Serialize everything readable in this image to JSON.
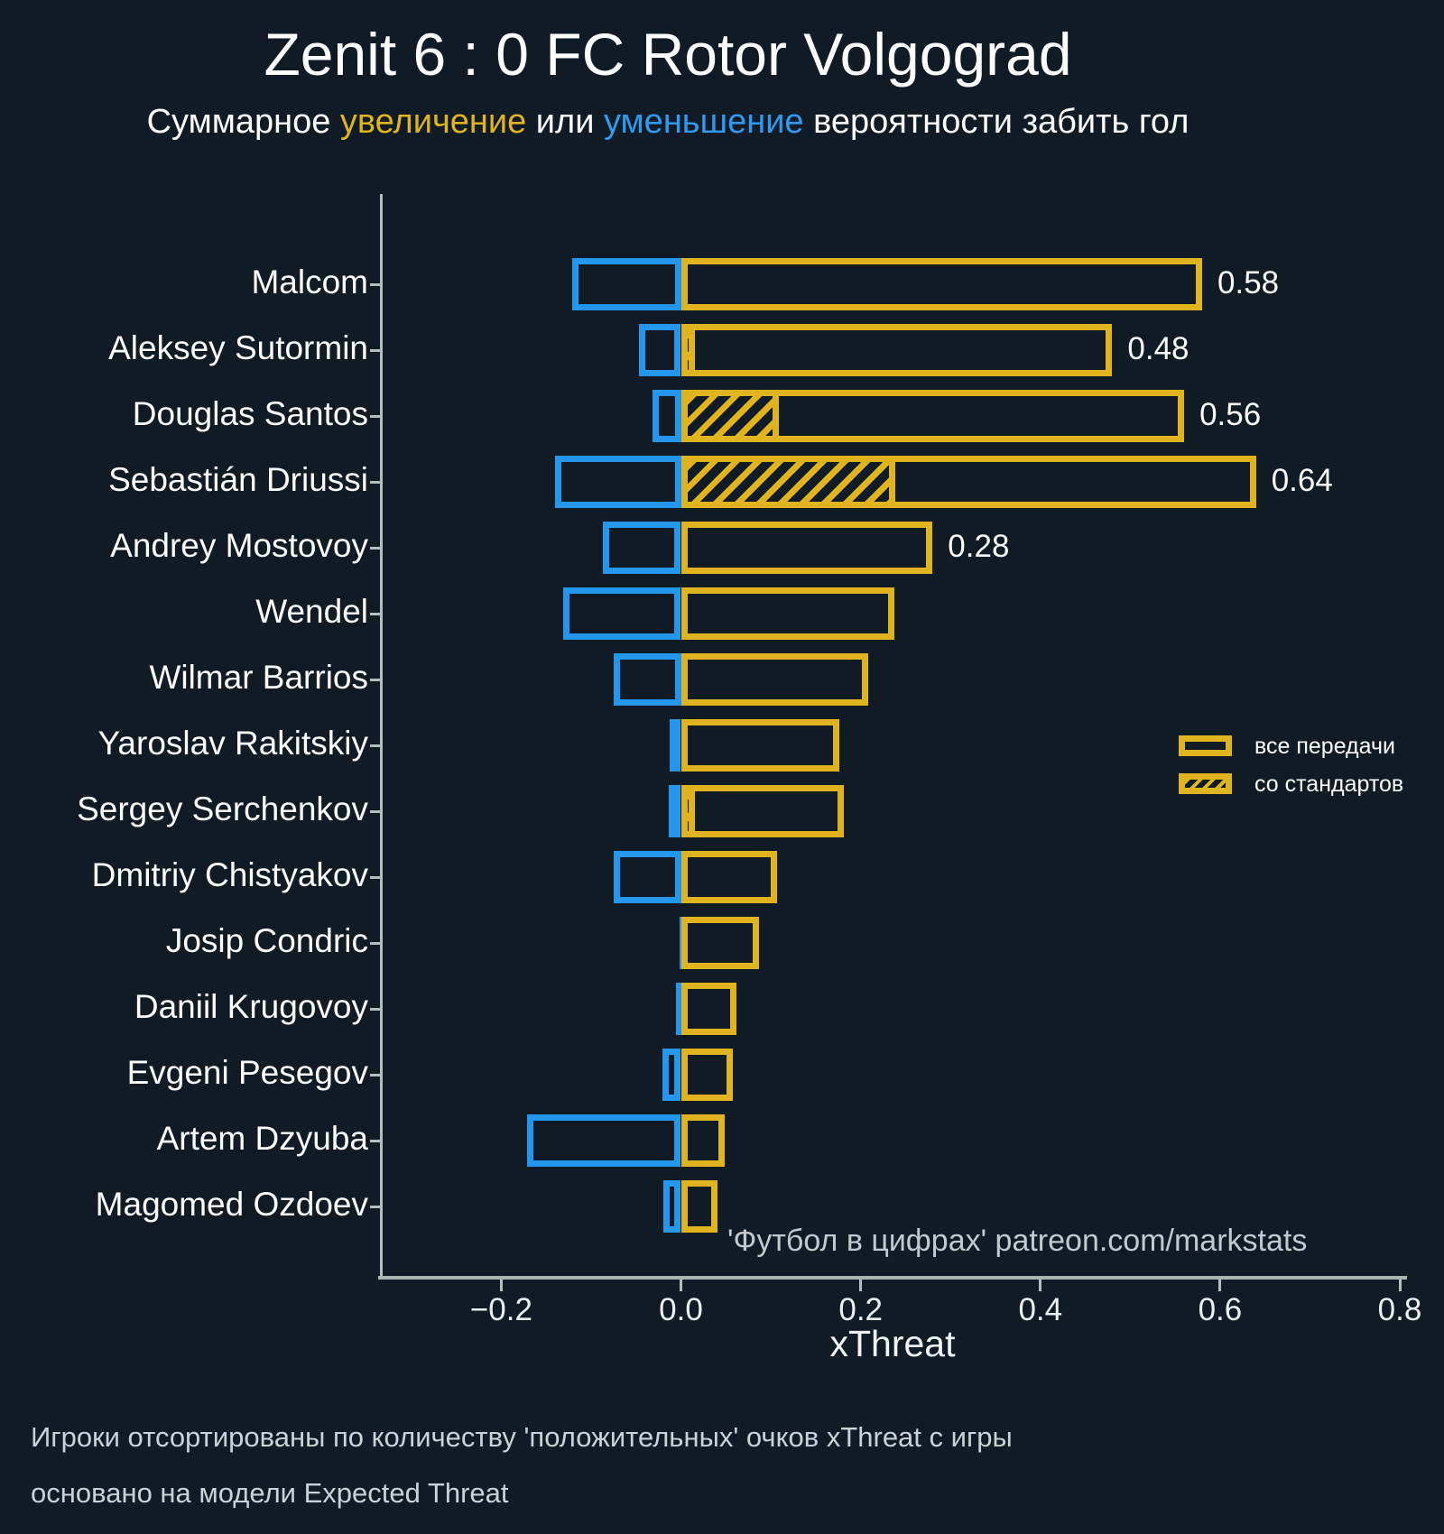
{
  "title": "Zenit 6 : 0 FC Rotor Volgograd",
  "subtitle": {
    "part1": "Суммарное ",
    "increase_word": "увеличение",
    "part2": " или ",
    "decrease_word": "уменьшение",
    "part3": " вероятности забить гол"
  },
  "colors": {
    "background": "#101b26",
    "positive_yellow": "#e0b41e",
    "negative_blue": "#2496ee",
    "text_white": "#ffffff",
    "muted_gray": "#ccd1d5",
    "axis_gray": "#b3bfbc"
  },
  "legend": {
    "items": [
      {
        "label": "все передачи",
        "style": "outline"
      },
      {
        "label": "со стандартов",
        "style": "hatched"
      }
    ]
  },
  "attribution": "'Футбол в цифрах' patreon.com/markstats",
  "footer": {
    "line1": "Игроки отсортированы по количеству 'положительных' очков xThreat с игры",
    "line2": "основано на модели Expected Threat"
  },
  "chart_data": {
    "type": "bar",
    "orientation": "horizontal",
    "title": "Zenit 6 : 0 FC Rotor Volgograd",
    "xlabel": "xThreat",
    "xlim": [
      -0.333,
      0.804
    ],
    "xticks": [
      -0.2,
      0.0,
      0.2,
      0.4,
      0.6,
      0.8
    ],
    "grid": false,
    "legend_position": "center right",
    "series_meaning": {
      "positive": "суммарное увеличение вероятности забить гол (все передачи)",
      "set_piece": "часть со стандартов (штриховка)",
      "negative": "суммарное уменьшение вероятности забить гол"
    },
    "players": [
      {
        "name": "Malcom",
        "positive": 0.58,
        "negative": -0.121,
        "set_piece": 0,
        "label": "0.58"
      },
      {
        "name": "Aleksey Sutormin",
        "positive": 0.48,
        "negative": -0.047,
        "set_piece": 0.016,
        "label": "0.48"
      },
      {
        "name": "Douglas Santos",
        "positive": 0.56,
        "negative": -0.032,
        "set_piece": 0.109,
        "label": "0.56"
      },
      {
        "name": "Sebastián Driussi",
        "positive": 0.64,
        "negative": -0.14,
        "set_piece": 0.238,
        "label": "0.64"
      },
      {
        "name": "Andrey Mostovoy",
        "positive": 0.28,
        "negative": -0.087,
        "set_piece": 0,
        "label": "0.28"
      },
      {
        "name": "Wendel",
        "positive": 0.237,
        "negative": -0.131,
        "set_piece": 0,
        "label": ""
      },
      {
        "name": "Wilmar Barrios",
        "positive": 0.208,
        "negative": -0.075,
        "set_piece": 0,
        "label": ""
      },
      {
        "name": "Yaroslav Rakitskiy",
        "positive": 0.176,
        "negative": -0.013,
        "set_piece": 0,
        "label": ""
      },
      {
        "name": "Sergey Serchenkov",
        "positive": 0.181,
        "negative": -0.014,
        "set_piece": 0.016,
        "label": ""
      },
      {
        "name": "Dmitriy Chistyakov",
        "positive": 0.107,
        "negative": -0.075,
        "set_piece": 0,
        "label": ""
      },
      {
        "name": "Josip Condric",
        "positive": 0.087,
        "negative": -0.002,
        "set_piece": 0,
        "label": ""
      },
      {
        "name": "Daniil Krugovoy",
        "positive": 0.062,
        "negative": -0.006,
        "set_piece": 0,
        "label": ""
      },
      {
        "name": "Evgeni Pesegov",
        "positive": 0.058,
        "negative": -0.021,
        "set_piece": 0,
        "label": ""
      },
      {
        "name": "Artem Dzyuba",
        "positive": 0.049,
        "negative": -0.171,
        "set_piece": 0,
        "label": ""
      },
      {
        "name": "Magomed Ozdoev",
        "positive": 0.041,
        "negative": -0.02,
        "set_piece": 0,
        "label": ""
      }
    ]
  }
}
